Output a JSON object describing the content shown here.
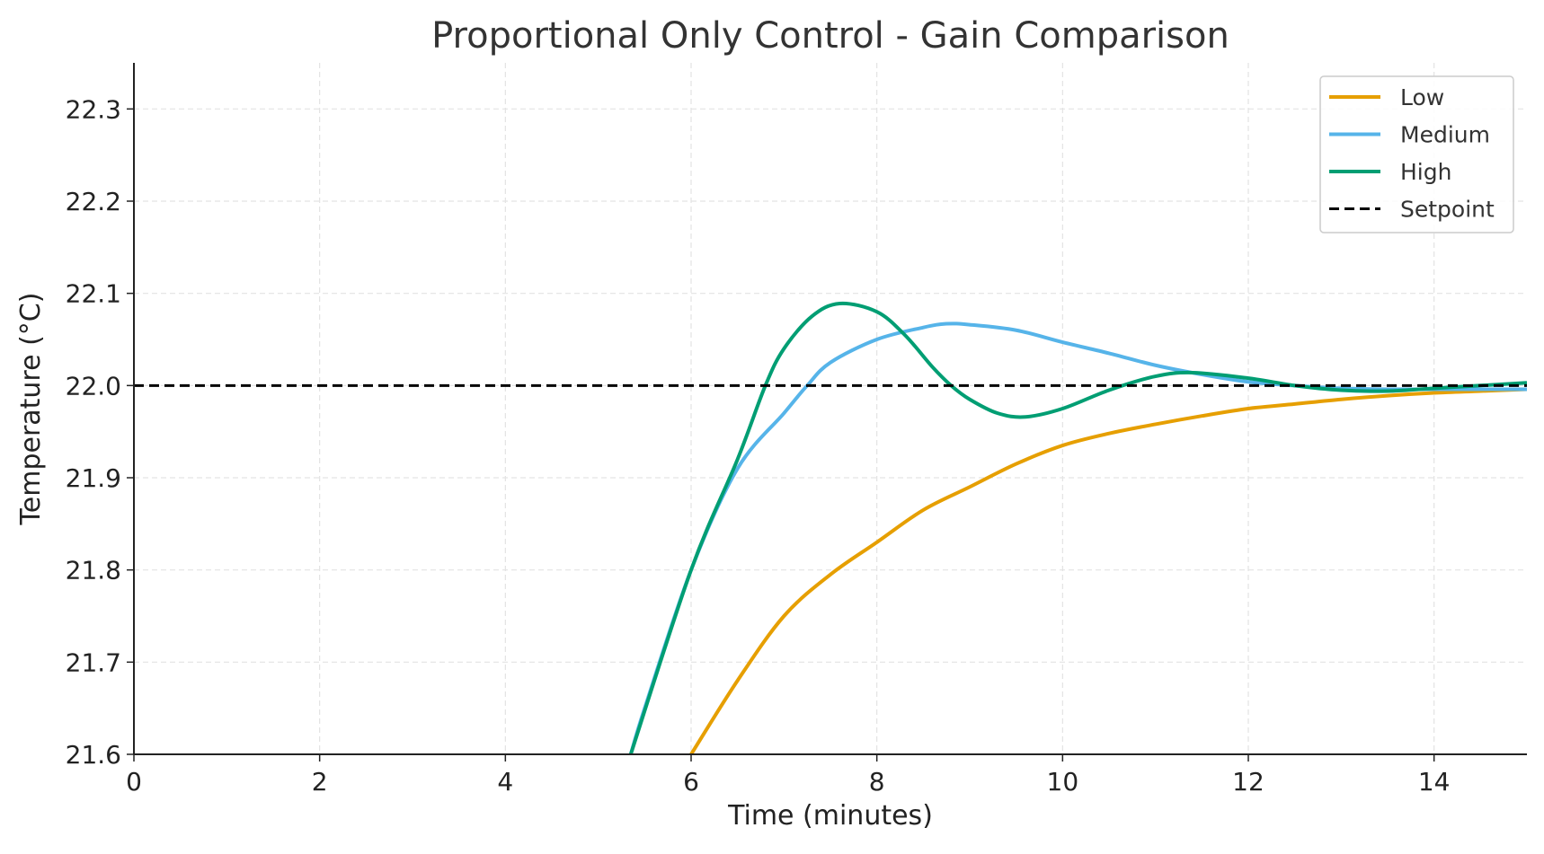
{
  "chart_data": {
    "type": "line",
    "title": "Proportional Only Control - Gain Comparison",
    "xlabel": "Time (minutes)",
    "ylabel": "Temperature (°C)",
    "xlim": [
      0,
      15
    ],
    "ylim": [
      21.6,
      22.35
    ],
    "xticks": [
      0,
      2,
      4,
      6,
      8,
      10,
      12,
      14
    ],
    "yticks": [
      21.6,
      21.7,
      21.8,
      21.9,
      22.0,
      22.1,
      22.2,
      22.3
    ],
    "ytick_labels": [
      "21.6",
      "21.7",
      "21.8",
      "21.9",
      "22.0",
      "22.1",
      "22.2",
      "22.3"
    ],
    "grid": true,
    "legend_position": "top-right",
    "series": [
      {
        "name": "Low",
        "color": "#E69F00",
        "style": "solid",
        "points": [
          [
            6,
            21.6
          ],
          [
            6.5,
            21.68
          ],
          [
            7,
            21.75
          ],
          [
            7.5,
            21.795
          ],
          [
            8,
            21.83
          ],
          [
            8.5,
            21.865
          ],
          [
            9,
            21.89
          ],
          [
            9.5,
            21.915
          ],
          [
            10,
            21.935
          ],
          [
            10.5,
            21.948
          ],
          [
            11,
            21.958
          ],
          [
            11.5,
            21.967
          ],
          [
            12,
            21.975
          ],
          [
            12.5,
            21.98
          ],
          [
            13,
            21.985
          ],
          [
            13.5,
            21.989
          ],
          [
            14,
            21.992
          ],
          [
            14.5,
            21.994
          ],
          [
            15,
            21.996
          ]
        ]
      },
      {
        "name": "Medium",
        "color": "#56B4E9",
        "style": "solid",
        "points": [
          [
            5.35,
            21.6
          ],
          [
            5.5,
            21.65
          ],
          [
            6,
            21.8
          ],
          [
            6.5,
            21.91
          ],
          [
            7,
            21.97
          ],
          [
            7.25,
            22.0
          ],
          [
            7.5,
            22.025
          ],
          [
            8,
            22.05
          ],
          [
            8.5,
            22.063
          ],
          [
            8.75,
            22.067
          ],
          [
            9,
            22.066
          ],
          [
            9.5,
            22.06
          ],
          [
            10,
            22.047
          ],
          [
            10.5,
            22.035
          ],
          [
            11,
            22.022
          ],
          [
            11.5,
            22.012
          ],
          [
            12,
            22.004
          ],
          [
            12.5,
            22.0
          ],
          [
            13,
            21.997
          ],
          [
            13.5,
            21.996
          ],
          [
            14,
            21.996
          ],
          [
            14.5,
            21.996
          ],
          [
            15,
            21.996
          ]
        ]
      },
      {
        "name": "High",
        "color": "#009E73",
        "style": "solid",
        "points": [
          [
            5.35,
            21.6
          ],
          [
            6,
            21.8
          ],
          [
            6.5,
            21.92
          ],
          [
            6.8,
            22.0
          ],
          [
            7,
            22.04
          ],
          [
            7.3,
            22.075
          ],
          [
            7.6,
            22.089
          ],
          [
            8,
            22.08
          ],
          [
            8.3,
            22.055
          ],
          [
            8.6,
            22.02
          ],
          [
            8.8,
            22.0
          ],
          [
            9,
            21.985
          ],
          [
            9.3,
            21.97
          ],
          [
            9.6,
            21.966
          ],
          [
            10,
            21.975
          ],
          [
            10.5,
            21.995
          ],
          [
            11,
            22.01
          ],
          [
            11.4,
            22.014
          ],
          [
            12,
            22.008
          ],
          [
            12.5,
            22.0
          ],
          [
            13,
            21.995
          ],
          [
            13.5,
            21.994
          ],
          [
            14,
            21.997
          ],
          [
            15,
            22.003
          ]
        ]
      },
      {
        "name": "Setpoint",
        "color": "#000000",
        "style": "dashed",
        "points": [
          [
            0,
            22.0
          ],
          [
            15,
            22.0
          ]
        ]
      }
    ]
  }
}
